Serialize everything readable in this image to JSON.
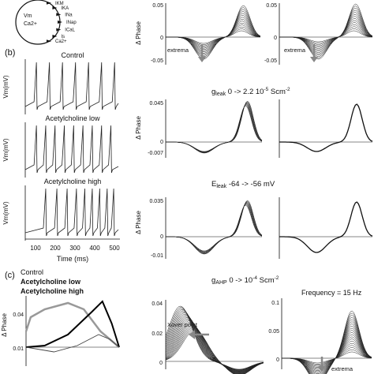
{
  "panel_b": {
    "label": "(b)",
    "traces": [
      {
        "title": "Control",
        "ylabel": "Vm(mV)",
        "spike_times": [
          60,
          130,
          200,
          270,
          340,
          410,
          480
        ]
      },
      {
        "title": "Acetylcholine low",
        "ylabel": "Vm(mV)",
        "spike_times": [
          60,
          110,
          160,
          210,
          260,
          310,
          360,
          410,
          460
        ]
      },
      {
        "title": "Acetylcholine high",
        "ylabel": "Vm(mV)",
        "spike_times": [
          110,
          170,
          225,
          275,
          320,
          360,
          400,
          440,
          475
        ]
      }
    ],
    "x_ticks": [
      "100",
      "200",
      "300",
      "400",
      "500"
    ],
    "xlabel": "Time (ms)"
  },
  "schematic": {
    "left_labels": [
      "Vm",
      "Ca2+"
    ],
    "channel_labels": [
      "IKM",
      "IKA",
      "INa",
      "INap",
      "ICaL",
      "Is",
      "Ca2+"
    ]
  },
  "panel_a_right": {
    "ylabel": "Δ Phase",
    "yticks": [
      "0.05",
      "0",
      "-0.05"
    ],
    "annotation": "extrema"
  },
  "row_gleak": {
    "title_main": "g",
    "title_sub": "leak",
    "title_rest": " 0 -> 2.2 10",
    "title_exp": "-5",
    "title_unit": " Scm",
    "title_unit_exp": "-2",
    "ylabel": "Δ Phase",
    "yticks": [
      "0.045",
      "0",
      "-0.007"
    ]
  },
  "row_eleak": {
    "title_main": "E",
    "title_sub": "leak",
    "title_rest": " -64 -> -56 mV",
    "ylabel": "Δ Phase",
    "yticks": [
      "0.035",
      "0",
      "-0.01"
    ]
  },
  "panel_c": {
    "label": "(c)",
    "legend": [
      {
        "label": "Control",
        "color": "#111111",
        "weight": "normal"
      },
      {
        "label": "Acetylcholine low",
        "color": "#000000",
        "weight": "bold"
      },
      {
        "label": "Acetylcholine high",
        "color": "#999999",
        "weight": "bold"
      }
    ],
    "ylabel": "Δ Phase",
    "yticks": [
      "0.04",
      "0.01"
    ],
    "gahp_title_main": "g",
    "gahp_title_sub": "AHP",
    "gahp_title_rest": " 0 -> 10",
    "gahp_title_exp": "-4",
    "gahp_title_unit": " Scm",
    "gahp_title_unit_exp": "-2",
    "middle_yticks": [
      "0.04",
      "0.02",
      "0"
    ],
    "middle_annotation": "Xover point",
    "frequency_label": "Frequency = 15 Hz",
    "right_yticks": [
      "0.1",
      "0.05",
      "0"
    ],
    "right_annotation": "extrema"
  },
  "colors": {
    "ink": "#111111",
    "annot_gray": "#888888",
    "curve_gray": "#999999"
  }
}
